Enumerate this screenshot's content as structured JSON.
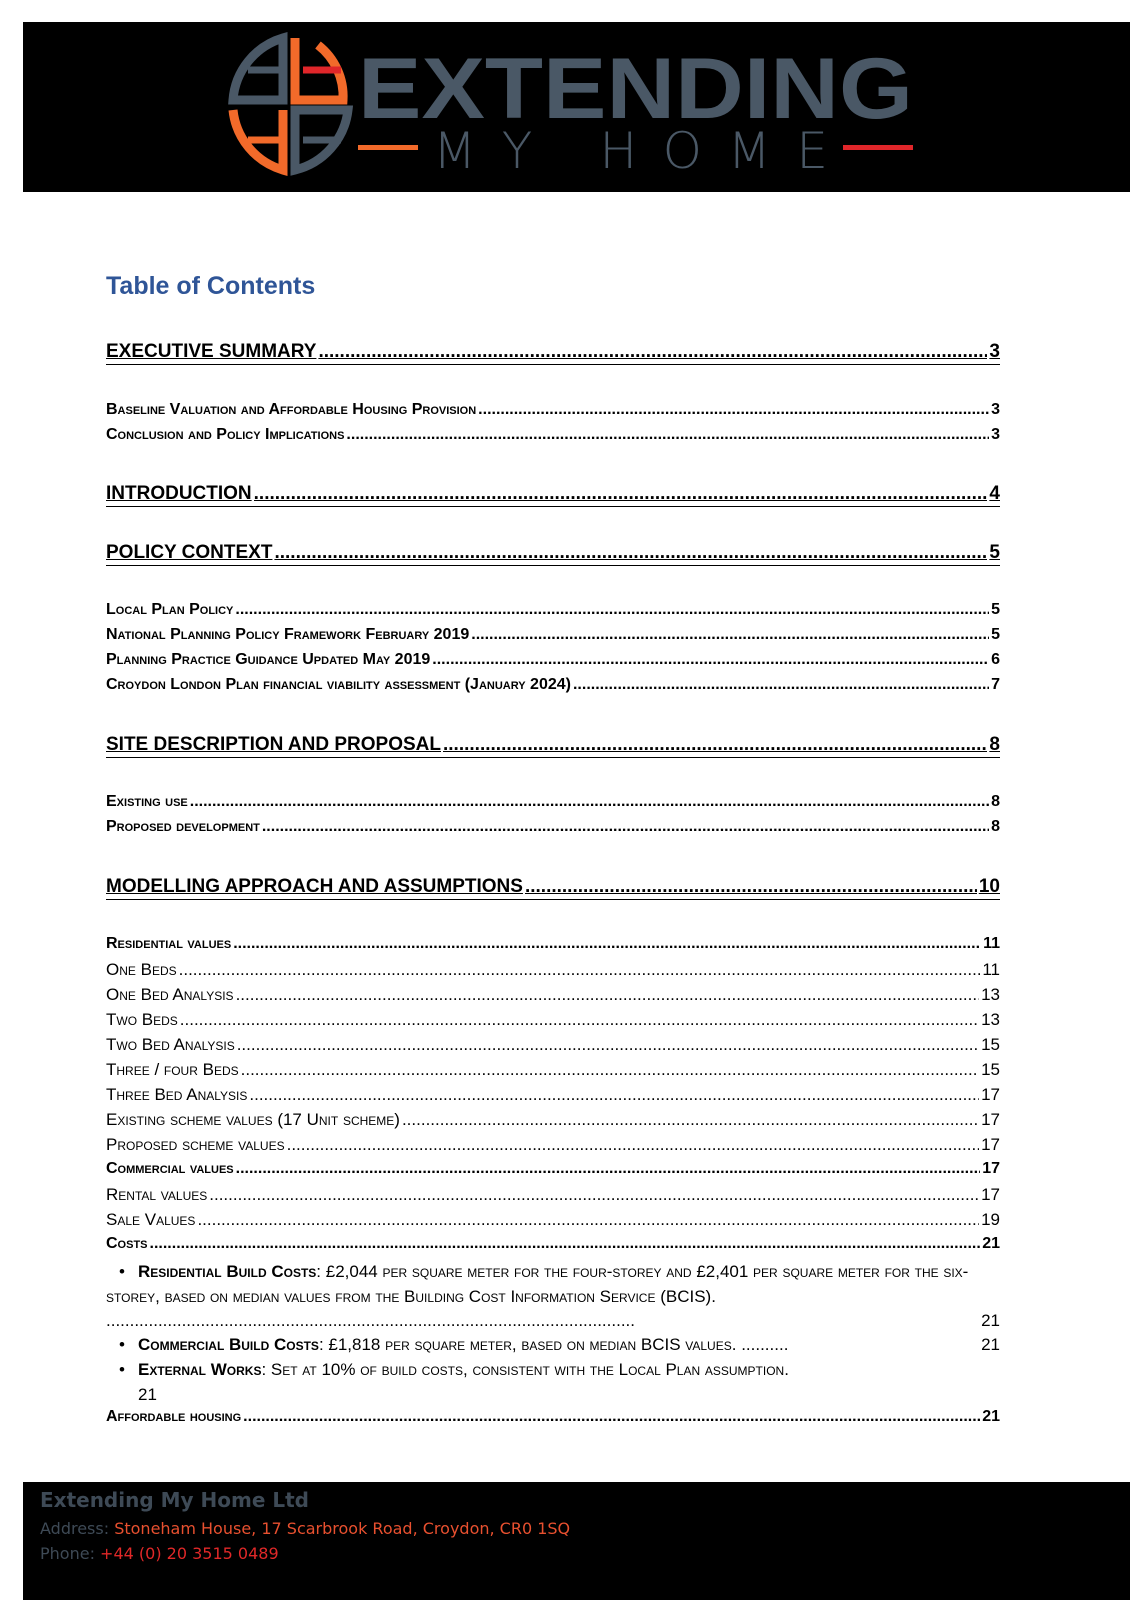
{
  "header": {
    "logo_text": "EXTENDING MY HOME",
    "colors": {
      "grey": "#4a5866",
      "orange": "#f26a2a",
      "red": "#e0262a",
      "background": "#000000"
    }
  },
  "toc": {
    "title": "Table of Contents",
    "entries": [
      {
        "level": "h1",
        "text": "EXECUTIVE SUMMARY",
        "page": "3"
      },
      {
        "level": "h2",
        "text": "Baseline Valuation and Affordable Housing Provision",
        "page": "3"
      },
      {
        "level": "h2",
        "text": "Conclusion and Policy Implications",
        "page": "3"
      },
      {
        "level": "h1",
        "text": "INTRODUCTION",
        "page": "4"
      },
      {
        "level": "h1",
        "text": "POLICY CONTEXT",
        "page": "5"
      },
      {
        "level": "h2",
        "text": "Local Plan Policy",
        "page": "5"
      },
      {
        "level": "h2",
        "text": "National Planning Policy Framework February 2019",
        "page": "5"
      },
      {
        "level": "h2",
        "text": "Planning Practice Guidance Updated May 2019",
        "page": "6"
      },
      {
        "level": "h2",
        "text": "Croydon London Plan financial viability assessment (January 2024)",
        "page": "7"
      },
      {
        "level": "h1",
        "text": "SITE DESCRIPTION AND PROPOSAL",
        "page": "8"
      },
      {
        "level": "h2",
        "text": "Existing use",
        "page": "8"
      },
      {
        "level": "h2",
        "text": "Proposed development",
        "page": "8"
      },
      {
        "level": "h1",
        "text": "MODELLING APPROACH AND ASSUMPTIONS",
        "page": "10"
      },
      {
        "level": "h2",
        "text": "Residential values",
        "page": "11"
      },
      {
        "level": "h3",
        "text": "One Beds",
        "page": "11"
      },
      {
        "level": "h3",
        "text": "One Bed Analysis",
        "page": "13"
      },
      {
        "level": "h3",
        "text": "Two Beds",
        "page": "13"
      },
      {
        "level": "h3",
        "text": "Two Bed Analysis",
        "page": "15"
      },
      {
        "level": "h3",
        "text": "Three / four Beds",
        "page": "15"
      },
      {
        "level": "h3",
        "text": "Three Bed Analysis",
        "page": "17"
      },
      {
        "level": "h3",
        "text": "Existing scheme values (17 Unit scheme)",
        "page": "17"
      },
      {
        "level": "h3",
        "text": "Proposed scheme values",
        "page": "17"
      },
      {
        "level": "h2",
        "text": "Commercial values",
        "page": "17"
      },
      {
        "level": "h3",
        "text": "Rental values",
        "page": "17"
      },
      {
        "level": "h3",
        "text": "Sale Values",
        "page": "19"
      },
      {
        "level": "h2",
        "text": "Costs",
        "page": "21"
      }
    ],
    "bullets": [
      {
        "bold": "Residential Build Costs",
        "text": ": £2,044 per square meter for the four-storey and £2,401 per square meter for the six-storey, based on median values from the Building Cost Information Service (BCIS).",
        "page": "21"
      },
      {
        "bold": "Commercial Build Costs",
        "text": ": £1,818 per square meter, based on median BCIS values.",
        "page": "21"
      },
      {
        "bold": "External Works",
        "text": ": Set at 10% of build costs, consistent with the Local Plan assumption.",
        "page": "21"
      }
    ],
    "last": {
      "level": "h2",
      "text": "Affordable housing",
      "page": "21"
    }
  },
  "footer": {
    "company": "Extending My Home Ltd",
    "address_label": "Address:",
    "address": "Stoneham House, 17 Scarbrook Road, Croydon, CR0 1SQ",
    "phone_label": "Phone:",
    "phone": "+44 (0) 20 3515 0489"
  }
}
